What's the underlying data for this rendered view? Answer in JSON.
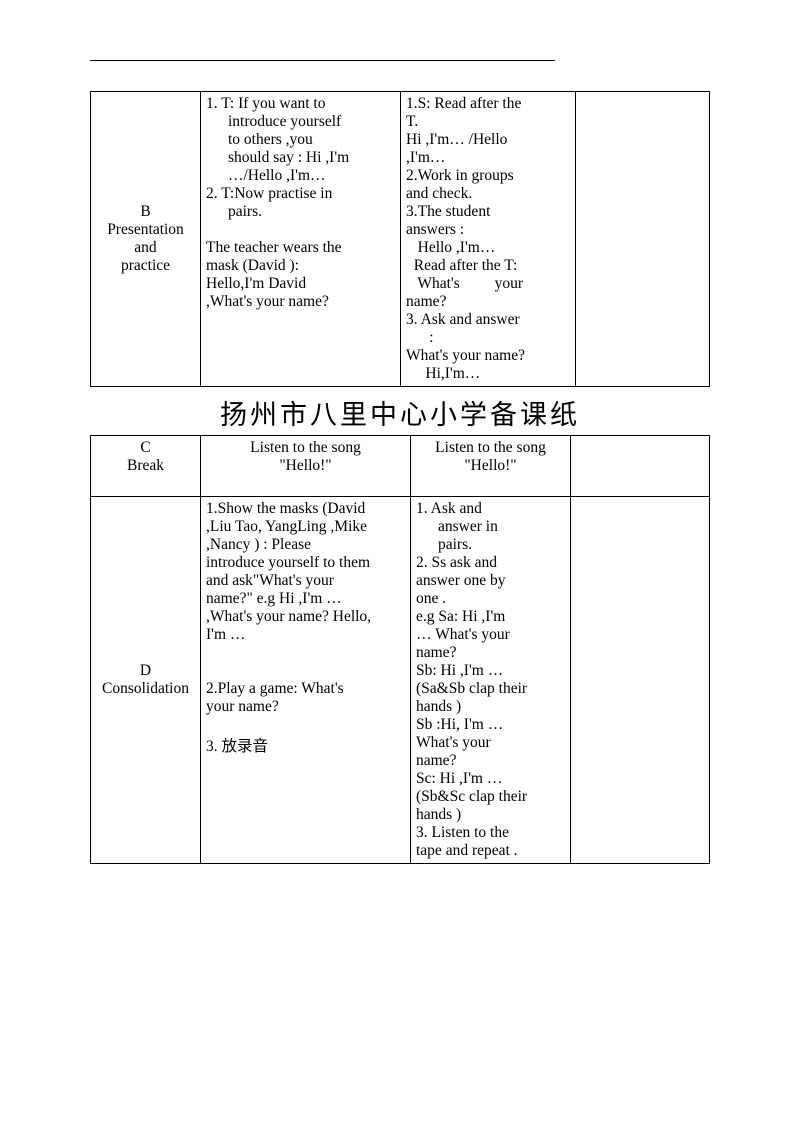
{
  "header_line": " ",
  "table1": {
    "row1": {
      "label": "B\nPresentation\nand\npractice",
      "col2_part1a": "1.  T:  If  you  want  to",
      "col2_part1b": "introduce    yourself",
      "col2_part1c": "to       others       ,you",
      "col2_part1d": "should say : Hi ,I'm",
      "col2_part1e": "…/Hello ,I'm…",
      "col2_part2a": "2.  T:Now  practise  in",
      "col2_part2b": "pairs.",
      "col2_space": " ",
      "col2_part3a": "The  teacher  wears  the",
      "col2_part3b": "mask         (David         ):",
      "col2_part3c": "Hello,I'm              David",
      "col2_part3d": ",What's your name?",
      "col3_1a": "1.S:  Read  after  the",
      "col3_1b": "T.",
      "col3_1c": "Hi   ,I'm…    /Hello",
      "col3_1d": ",I'm…",
      "col3_2a": "2.Work   in   groups",
      "col3_2b": "and check.",
      "col3_3a": "3.The          student",
      "col3_3b": "answers :",
      "col3_3c": "   Hello ,I'm…",
      "col3_3d": "  Read after the T:",
      "col3_3e": "   What's         your",
      "col3_3f": "name?",
      "col3_4a": "3.  Ask  and  answer",
      "col3_4b": "      :",
      "col3_4c": "What's your name?",
      "col3_4d": "     Hi,I'm…"
    }
  },
  "title": "扬州市八里中心小学备课纸",
  "table2": {
    "rowC": {
      "label": "C\nBreak",
      "col2a": "Listen to the song",
      "col2b": "\"Hello!\"",
      "col3a": "Listen to the song",
      "col3b": "\"Hello!\""
    },
    "rowD": {
      "label": "D\nConsolidation",
      "col2_1a": "1.Show the masks (David",
      "col2_1b": ",Liu Tao, YangLing ,Mike",
      "col2_1c": ",Nancy     )     :     Please",
      "col2_1d": "introduce yourself to them",
      "col2_1e": "and    ask\"What's    your",
      "col2_1f": "name?\"  e.g     Hi  ,I'm  …",
      "col2_1g": ",What's your name? Hello,",
      "col2_1h": "I'm …",
      "col2_space": " ",
      "col2_space2": " ",
      "col2_2a": "2.Play   a   game:   What's",
      "col2_2b": "your name?",
      "col2_space3": " ",
      "col2_3": "3.  放录音",
      "col3_1a": "1.   Ask          and",
      "col3_1b": "answer        in",
      "col3_1c": "pairs.",
      "col3_2a": "2.   Ss   ask   and",
      "col3_2b": "answer   one   by",
      "col3_2c": "one .",
      "col3_eg1": "e.g  Sa:   Hi   ,I'm",
      "col3_eg2": "…   What's   your",
      "col3_eg3": "name?",
      "col3_sb1": "Sb:   Hi   ,I'm   …",
      "col3_sb2": "(Sa&Sb clap their",
      "col3_sb3": "hands )",
      "col3_sb4": "Sb   :Hi,   I'm   …",
      "col3_sb5": "What's          your",
      "col3_sb6": "name?",
      "col3_sc1": "Sc: Hi ,I'm …",
      "col3_sc2": "(Sb&Sc clap their",
      "col3_sc3": "hands )",
      "col3_3a": "3.  Listen  to  the",
      "col3_3b": "tape and repeat ."
    }
  }
}
